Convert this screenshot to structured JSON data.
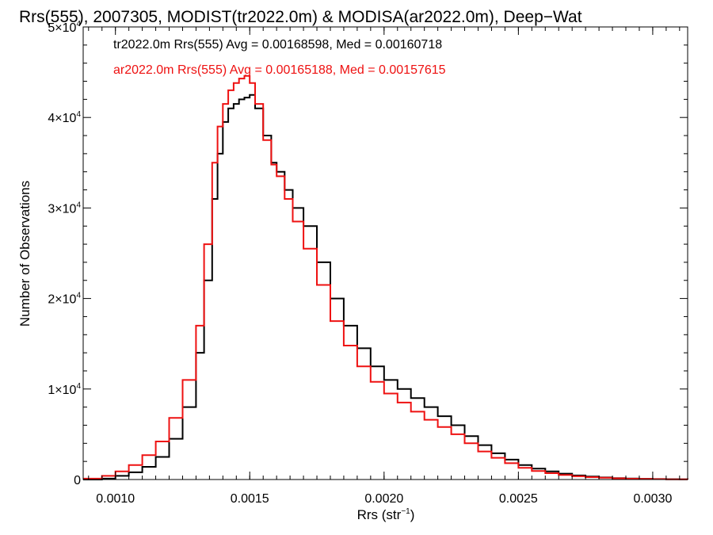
{
  "chart_data": {
    "type": "line",
    "step": true,
    "title": "Rrs(555), 2007305, MODIST(tr2022.0m) & MODISA(ar2022.0m), Deep−Wat",
    "xlabel": {
      "prefix": "Rrs (str",
      "sup": "−1",
      "suffix": ")"
    },
    "ylabel": "Number of Observations",
    "xlim": [
      0.00088,
      0.00313
    ],
    "ylim": [
      0,
      50000
    ],
    "xticks": [
      0.001,
      0.0015,
      0.002,
      0.0025,
      0.003
    ],
    "xticklabels": [
      "0.0010",
      "0.0015",
      "0.0020",
      "0.0025",
      "0.0030"
    ],
    "yticks": [
      0,
      10000,
      20000,
      30000,
      40000,
      50000
    ],
    "yticklabels": [
      {
        "base": "0",
        "sup": ""
      },
      {
        "base": "1×10",
        "sup": "4"
      },
      {
        "base": "2×10",
        "sup": "4"
      },
      {
        "base": "3×10",
        "sup": "4"
      },
      {
        "base": "4×10",
        "sup": "4"
      },
      {
        "base": "5×10",
        "sup": "4"
      }
    ],
    "grid": false,
    "legend_position": "top-left",
    "series": [
      {
        "name": "tr2022.0m",
        "color": "#000000",
        "label": "tr2022.0m Rrs(555) Avg = 0.00168598, Med = 0.00160718",
        "x": [
          0.00088,
          0.00095,
          0.001,
          0.00105,
          0.0011,
          0.00115,
          0.0012,
          0.00125,
          0.0013,
          0.00133,
          0.00136,
          0.00138,
          0.0014,
          0.00142,
          0.00144,
          0.00146,
          0.00148,
          0.0015,
          0.00152,
          0.00155,
          0.00158,
          0.0016,
          0.00163,
          0.00166,
          0.0017,
          0.00175,
          0.0018,
          0.00185,
          0.0019,
          0.00195,
          0.002,
          0.00205,
          0.0021,
          0.00215,
          0.0022,
          0.00225,
          0.0023,
          0.00235,
          0.0024,
          0.00245,
          0.0025,
          0.00255,
          0.0026,
          0.00265,
          0.0027,
          0.00275,
          0.0028,
          0.00285,
          0.0029,
          0.00295,
          0.003,
          0.00305,
          0.0031,
          0.00313
        ],
        "y": [
          0,
          100,
          400,
          800,
          1400,
          2500,
          4500,
          8000,
          14000,
          22000,
          31000,
          36000,
          39500,
          41000,
          41500,
          42000,
          42200,
          42500,
          41000,
          38000,
          35000,
          34000,
          32000,
          30000,
          28000,
          24000,
          20000,
          17000,
          14500,
          12500,
          11000,
          10000,
          9000,
          8000,
          7000,
          6000,
          4800,
          3800,
          2900,
          2200,
          1600,
          1200,
          900,
          650,
          450,
          320,
          230,
          160,
          110,
          80,
          55,
          35,
          20,
          10
        ]
      },
      {
        "name": "ar2022.0m",
        "color": "#ee1111",
        "label": "ar2022.0m Rrs(555) Avg = 0.00165188, Med = 0.00157615",
        "x": [
          0.00088,
          0.00095,
          0.001,
          0.00105,
          0.0011,
          0.00115,
          0.0012,
          0.00125,
          0.0013,
          0.00133,
          0.00136,
          0.00138,
          0.0014,
          0.00142,
          0.00144,
          0.00146,
          0.00148,
          0.0015,
          0.00152,
          0.00155,
          0.00158,
          0.0016,
          0.00163,
          0.00166,
          0.0017,
          0.00175,
          0.0018,
          0.00185,
          0.0019,
          0.00195,
          0.002,
          0.00205,
          0.0021,
          0.00215,
          0.0022,
          0.00225,
          0.0023,
          0.00235,
          0.0024,
          0.00245,
          0.0025,
          0.00255,
          0.0026,
          0.00265,
          0.0027,
          0.00275,
          0.0028,
          0.00285,
          0.0029,
          0.00295,
          0.003,
          0.00305,
          0.0031,
          0.00313
        ],
        "y": [
          100,
          400,
          900,
          1600,
          2700,
          4200,
          6800,
          11000,
          17000,
          26000,
          35000,
          39000,
          41500,
          43000,
          43800,
          44300,
          44600,
          43800,
          41500,
          37500,
          34800,
          33500,
          31000,
          28500,
          25500,
          21500,
          17500,
          14800,
          12500,
          10800,
          9500,
          8500,
          7500,
          6600,
          5800,
          5000,
          4000,
          3100,
          2400,
          1800,
          1300,
          950,
          700,
          500,
          360,
          260,
          190,
          130,
          90,
          60,
          40,
          25,
          15,
          8
        ]
      }
    ]
  }
}
